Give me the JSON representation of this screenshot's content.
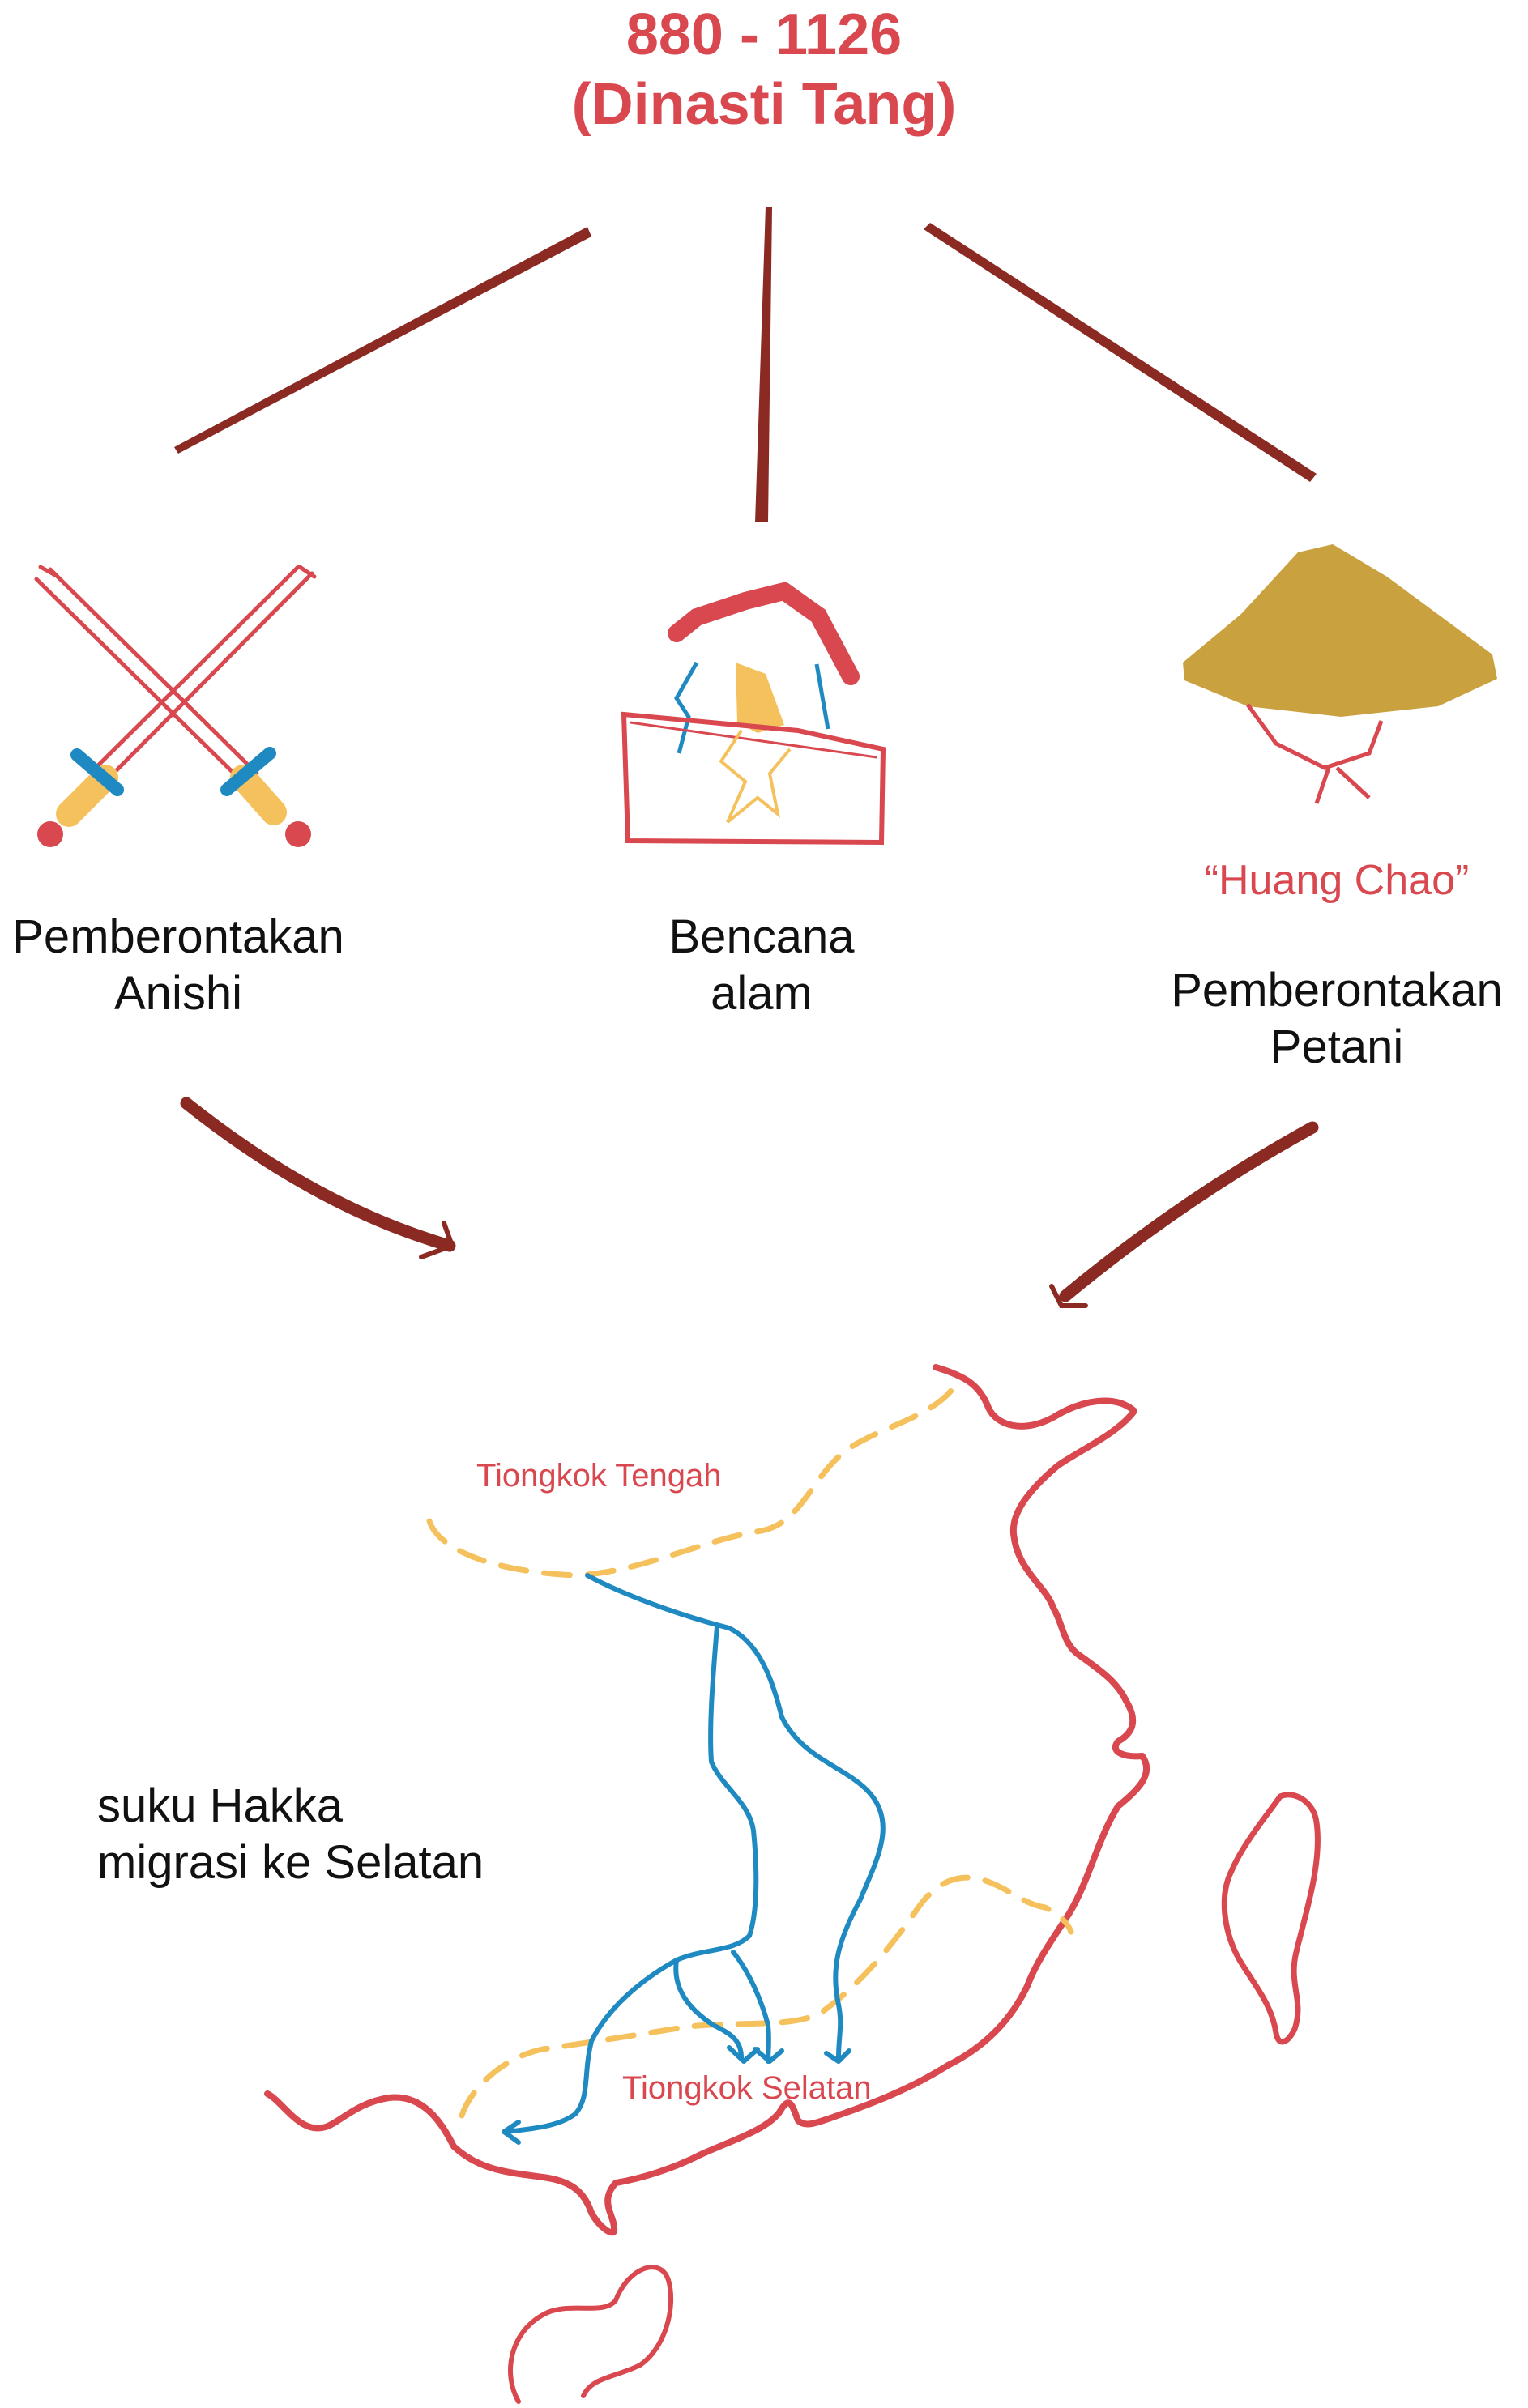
{
  "title": {
    "line1": "880 - 1126",
    "line2": "(Dinasti Tang)"
  },
  "causes": [
    {
      "icon": "crossed-swords-icon",
      "line1": "Pemberontakan",
      "line2": "Anishi"
    },
    {
      "icon": "earthquake-house-icon",
      "line1": "Bencana",
      "line2": "alam"
    },
    {
      "icon": "conical-hat-icon",
      "quote": "“Huang Chao”",
      "line1": "Pemberontakan",
      "line2": "Petani"
    }
  ],
  "map": {
    "region_north": "Tiongkok Tengah",
    "region_south": "Tiongkok Selatan",
    "note_line1": "suku Hakka",
    "note_line2": "migrasi ke Selatan"
  },
  "colors": {
    "title_red": "#d9474f",
    "arrow_brown": "#8b2a22",
    "coast_red": "#d9474f",
    "border_yellow": "#f5c15c",
    "river_blue": "#1f8ac2",
    "hat_gold": "#c9a23f",
    "sword_blade": "#d9474f",
    "sword_guard": "#1f8ac2",
    "sword_grip": "#f5c15c"
  }
}
